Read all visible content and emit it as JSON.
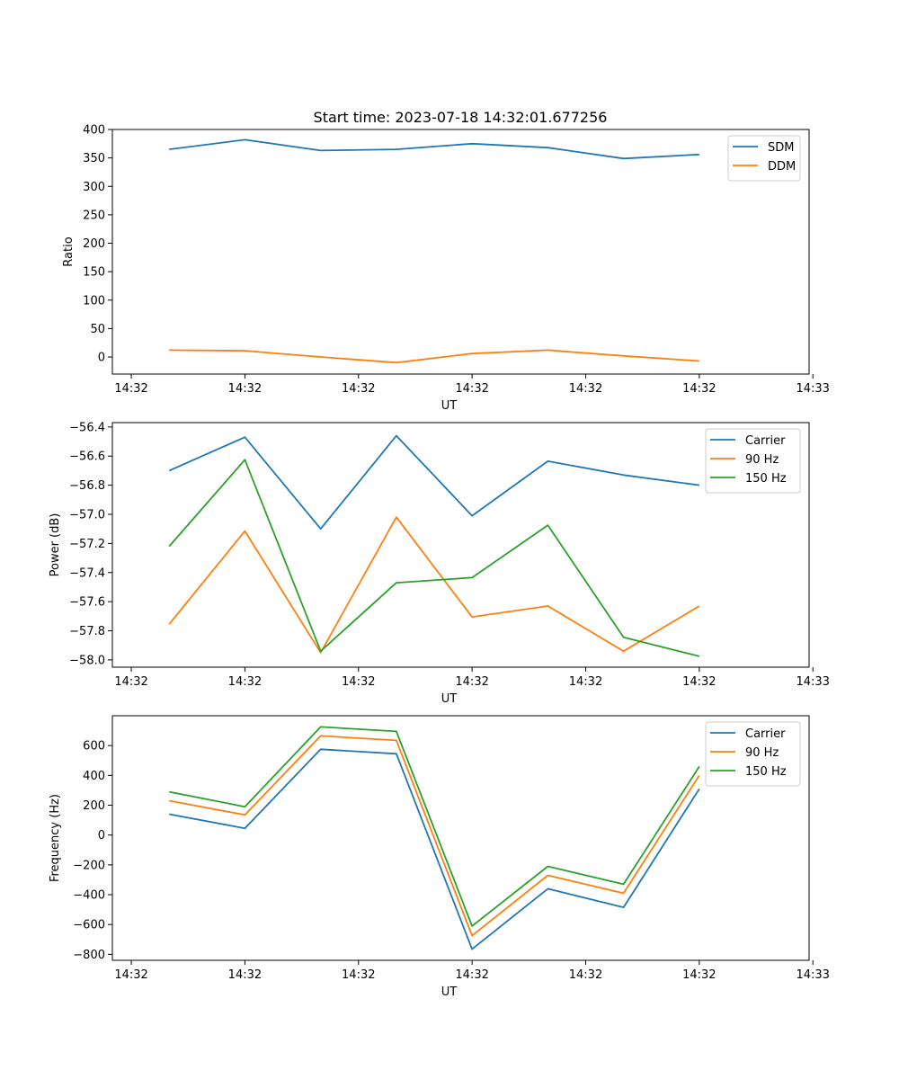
{
  "figure": {
    "title": "Start time: 2023-07-18 14:32:01.677256"
  },
  "chart_data": [
    {
      "type": "line",
      "xlabel": "UT",
      "ylabel": "Ratio",
      "x": [
        1,
        2,
        3,
        4,
        5,
        6,
        7,
        8
      ],
      "xlim": [
        0.25,
        9.45
      ],
      "xticks": [
        0.5,
        2,
        3.5,
        5,
        6.5,
        8,
        9.5
      ],
      "xtick_labels": [
        "14:32",
        "14:32",
        "14:32",
        "14:32",
        "14:32",
        "14:32",
        "14:33"
      ],
      "ylim": [
        -30,
        400
      ],
      "yticks": [
        0,
        50,
        100,
        150,
        200,
        250,
        300,
        350,
        400
      ],
      "ytick_labels": [
        "0",
        "50",
        "100",
        "150",
        "200",
        "250",
        "300",
        "350",
        "400"
      ],
      "legend": "top-right",
      "series": [
        {
          "name": "SDM",
          "color": "#1f77b4",
          "values": [
            365,
            382,
            363,
            365,
            375,
            368,
            349,
            356
          ]
        },
        {
          "name": "DDM",
          "color": "#ff7f0e",
          "values": [
            12,
            11,
            0,
            -10,
            6,
            12,
            2,
            -7
          ]
        }
      ]
    },
    {
      "type": "line",
      "xlabel": "UT",
      "ylabel": "Power (dB)",
      "x": [
        1,
        2,
        3,
        4,
        5,
        6,
        7,
        8
      ],
      "xlim": [
        0.25,
        9.45
      ],
      "xticks": [
        0.5,
        2,
        3.5,
        5,
        6.5,
        8,
        9.5
      ],
      "xtick_labels": [
        "14:32",
        "14:32",
        "14:32",
        "14:32",
        "14:32",
        "14:32",
        "14:33"
      ],
      "ylim": [
        -58.05,
        -56.37
      ],
      "yticks": [
        -58.0,
        -57.8,
        -57.6,
        -57.4,
        -57.2,
        -57.0,
        -56.8,
        -56.6,
        -56.4
      ],
      "ytick_labels": [
        "−58.0",
        "−57.8",
        "−57.6",
        "−57.4",
        "−57.2",
        "−57.0",
        "−56.8",
        "−56.6",
        "−56.4"
      ],
      "legend": "top-right",
      "series": [
        {
          "name": "Carrier",
          "color": "#1f77b4",
          "values": [
            -56.7,
            -56.47,
            -57.1,
            -56.46,
            -57.01,
            -56.635,
            -56.73,
            -56.8
          ]
        },
        {
          "name": "90 Hz",
          "color": "#ff7f0e",
          "values": [
            -57.755,
            -57.115,
            -57.95,
            -57.02,
            -57.705,
            -57.63,
            -57.94,
            -57.63
          ]
        },
        {
          "name": "150 Hz",
          "color": "#2ca02c",
          "values": [
            -57.22,
            -56.625,
            -57.94,
            -57.47,
            -57.435,
            -57.075,
            -57.845,
            -57.975
          ]
        }
      ]
    },
    {
      "type": "line",
      "xlabel": "UT",
      "ylabel": "Frequency (Hz)",
      "x": [
        1,
        2,
        3,
        4,
        5,
        6,
        7,
        8
      ],
      "xlim": [
        0.25,
        9.45
      ],
      "xticks": [
        0.5,
        2,
        3.5,
        5,
        6.5,
        8,
        9.5
      ],
      "xtick_labels": [
        "14:32",
        "14:32",
        "14:32",
        "14:32",
        "14:32",
        "14:32",
        "14:33"
      ],
      "ylim": [
        -840,
        800
      ],
      "yticks": [
        -800,
        -600,
        -400,
        -200,
        0,
        200,
        400,
        600
      ],
      "ytick_labels": [
        "−800",
        "−600",
        "−400",
        "−200",
        "0",
        "200",
        "400",
        "600"
      ],
      "legend": "top-right",
      "series": [
        {
          "name": "Carrier",
          "color": "#1f77b4",
          "values": [
            140,
            45,
            575,
            545,
            -765,
            -360,
            -485,
            310
          ]
        },
        {
          "name": "90 Hz",
          "color": "#ff7f0e",
          "values": [
            230,
            135,
            665,
            635,
            -675,
            -270,
            -390,
            400
          ]
        },
        {
          "name": "150 Hz",
          "color": "#2ca02c",
          "values": [
            290,
            190,
            725,
            695,
            -610,
            -210,
            -330,
            460
          ]
        }
      ]
    }
  ]
}
